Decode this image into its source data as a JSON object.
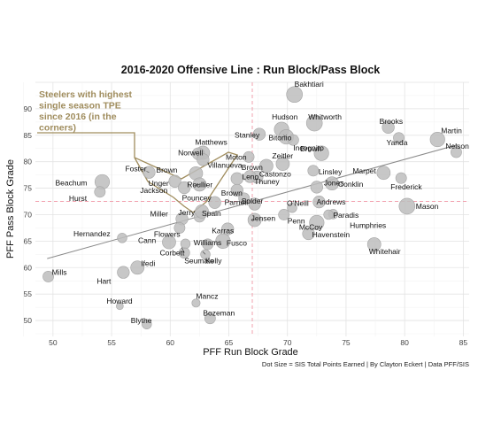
{
  "chart_data": {
    "type": "scatter",
    "title": "2016-2020 Offensive Line : Run Block/Pass Block",
    "xlabel": "PFF Run Block Grade",
    "ylabel": "PFF Pass Block Grade",
    "xlim": [
      48.5,
      85.5
    ],
    "ylim": [
      47,
      95
    ],
    "xticks": [
      50,
      55,
      60,
      65,
      70,
      75,
      80,
      85
    ],
    "yticks": [
      50,
      55,
      60,
      65,
      70,
      75,
      80,
      85,
      90
    ],
    "reference_lines": {
      "x": 67,
      "y": 72.5
    },
    "trend_line": [
      [
        49.5,
        61.7
      ],
      [
        84.5,
        83.2
      ]
    ],
    "caption": "Dot Size = SIS Total Points Earned | By Clayton Eckert | Data PFF/SIS",
    "annotation": {
      "lines": [
        "Steelers with highest",
        "single season TPE",
        "since 2016 (in the",
        "corners)"
      ]
    },
    "points": [
      {
        "x": 70.6,
        "y": 92.7,
        "size": 10,
        "label": "Bakhtiari"
      },
      {
        "x": 69.5,
        "y": 86.1,
        "size": 9,
        "label": "Hudson"
      },
      {
        "x": 72.3,
        "y": 87.3,
        "size": 10,
        "label": "Whitworth"
      },
      {
        "x": 78.6,
        "y": 86.5,
        "size": 7,
        "label": "Brooks"
      },
      {
        "x": 79.5,
        "y": 84.5,
        "size": 6,
        "label": "Yanda"
      },
      {
        "x": 82.8,
        "y": 84.2,
        "size": 9,
        "label": "Martin"
      },
      {
        "x": 84.4,
        "y": 81.8,
        "size": 6,
        "label": "Nelson"
      },
      {
        "x": 67.6,
        "y": 85.2,
        "size": 7,
        "label": "Stanley"
      },
      {
        "x": 69.9,
        "y": 84.7,
        "size": 9,
        "label": "Bitonio"
      },
      {
        "x": 70.5,
        "y": 84.1,
        "size": 6,
        "label": "Incognito"
      },
      {
        "x": 69.6,
        "y": 79.6,
        "size": 8,
        "label": "Zeitler"
      },
      {
        "x": 72.9,
        "y": 81.6,
        "size": 9,
        "label": "Brown"
      },
      {
        "x": 68.2,
        "y": 79.2,
        "size": 8,
        "label": "Castonzo"
      },
      {
        "x": 66.7,
        "y": 80.9,
        "size": 6,
        "label": "Moton"
      },
      {
        "x": 72.2,
        "y": 78.3,
        "size": 6,
        "label": "Linsley"
      },
      {
        "x": 73.8,
        "y": 75.9,
        "size": 8,
        "label": "Conklin"
      },
      {
        "x": 78.2,
        "y": 77.9,
        "size": 8,
        "label": "Marpet"
      },
      {
        "x": 79.7,
        "y": 76.9,
        "size": 6,
        "label": "Frederick"
      },
      {
        "x": 80.2,
        "y": 71.6,
        "size": 10,
        "label": "Mason"
      },
      {
        "x": 67.4,
        "y": 77.1,
        "size": 7,
        "label": "Thuney"
      },
      {
        "x": 66.8,
        "y": 77.2,
        "size": 7,
        "label": "Leno"
      },
      {
        "x": 65.7,
        "y": 76.8,
        "size": 7,
        "label": "Brown"
      },
      {
        "x": 66.3,
        "y": 73.1,
        "size": 6,
        "label": "Solder"
      },
      {
        "x": 72.5,
        "y": 75.2,
        "size": 7,
        "label": "Jones"
      },
      {
        "x": 70.4,
        "y": 71.3,
        "size": 5,
        "label": "O'Neill"
      },
      {
        "x": 72.7,
        "y": 72.4,
        "size": 7,
        "label": "Andrews"
      },
      {
        "x": 73.9,
        "y": 70.1,
        "size": 5,
        "label": "Paradis"
      },
      {
        "x": 73.5,
        "y": 70.0,
        "size": 5,
        "label": "Humphries"
      },
      {
        "x": 72.5,
        "y": 68.5,
        "size": 9,
        "label": "McCoy"
      },
      {
        "x": 71.8,
        "y": 66.4,
        "size": 7,
        "label": "Havenstein"
      },
      {
        "x": 69.7,
        "y": 70.0,
        "size": 6,
        "label": "Penn"
      },
      {
        "x": 77.4,
        "y": 64.4,
        "size": 8,
        "label": "Whitehair"
      },
      {
        "x": 67.2,
        "y": 69.0,
        "size": 8,
        "label": "Jensen"
      },
      {
        "x": 67.2,
        "y": 72.0,
        "size": 7,
        "label": "Parnell"
      },
      {
        "x": 65.7,
        "y": 74.6,
        "size": 7,
        "label": "Brown"
      },
      {
        "x": 64.9,
        "y": 67.3,
        "size": 7,
        "label": "Karras"
      },
      {
        "x": 64.5,
        "y": 65.0,
        "size": 9,
        "label": "Fusco"
      },
      {
        "x": 63.2,
        "y": 64.4,
        "size": 6,
        "label": "Williams"
      },
      {
        "x": 63.0,
        "y": 62.5,
        "size": 5,
        "label": "Kelly"
      },
      {
        "x": 61.2,
        "y": 62.8,
        "size": 6,
        "label": "Seumalo"
      },
      {
        "x": 62.8,
        "y": 81.7,
        "size": 8,
        "label": "Matthews"
      },
      {
        "x": 62.4,
        "y": 81.5,
        "size": 7,
        "label": "Norwell"
      },
      {
        "x": 62.8,
        "y": 80.4,
        "size": 7,
        "label": "Villanueva"
      },
      {
        "x": 58.2,
        "y": 78.0,
        "size": 7,
        "label": "Foster"
      },
      {
        "x": 62.2,
        "y": 77.8,
        "size": 8,
        "label": "Brown"
      },
      {
        "x": 62.5,
        "y": 75.7,
        "size": 8,
        "label": "Roullier"
      },
      {
        "x": 60.4,
        "y": 76.3,
        "size": 7,
        "label": "Unger"
      },
      {
        "x": 61.2,
        "y": 75.1,
        "size": 7,
        "label": "Jackson"
      },
      {
        "x": 63.8,
        "y": 72.3,
        "size": 7,
        "label": "Pouncey"
      },
      {
        "x": 62.5,
        "y": 69.6,
        "size": 6,
        "label": "Jerry"
      },
      {
        "x": 62.7,
        "y": 70.6,
        "size": 8,
        "label": "Spain"
      },
      {
        "x": 61.0,
        "y": 69.2,
        "size": 7,
        "label": "Miller"
      },
      {
        "x": 60.8,
        "y": 67.5,
        "size": 6,
        "label": "Flowers"
      },
      {
        "x": 59.9,
        "y": 64.8,
        "size": 8,
        "label": "Cann"
      },
      {
        "x": 61.3,
        "y": 64.5,
        "size": 5,
        "label": "Corbett"
      },
      {
        "x": 54.2,
        "y": 76.2,
        "size": 9,
        "label": "Beachum"
      },
      {
        "x": 54.0,
        "y": 74.3,
        "size": 6,
        "label": "Hurst"
      },
      {
        "x": 55.9,
        "y": 65.6,
        "size": 5,
        "label": "Hernandez"
      },
      {
        "x": 57.2,
        "y": 60.0,
        "size": 8,
        "label": "Ifedi"
      },
      {
        "x": 56.0,
        "y": 59.1,
        "size": 7,
        "label": "Hart"
      },
      {
        "x": 49.6,
        "y": 58.3,
        "size": 6,
        "label": "Mills"
      },
      {
        "x": 55.7,
        "y": 52.7,
        "size": 3,
        "label": "Howard"
      },
      {
        "x": 62.2,
        "y": 53.3,
        "size": 4,
        "label": "Mancz"
      },
      {
        "x": 63.4,
        "y": 50.4,
        "size": 6,
        "label": "Bozeman"
      },
      {
        "x": 58.0,
        "y": 49.3,
        "size": 5,
        "label": "Blythe"
      }
    ]
  }
}
